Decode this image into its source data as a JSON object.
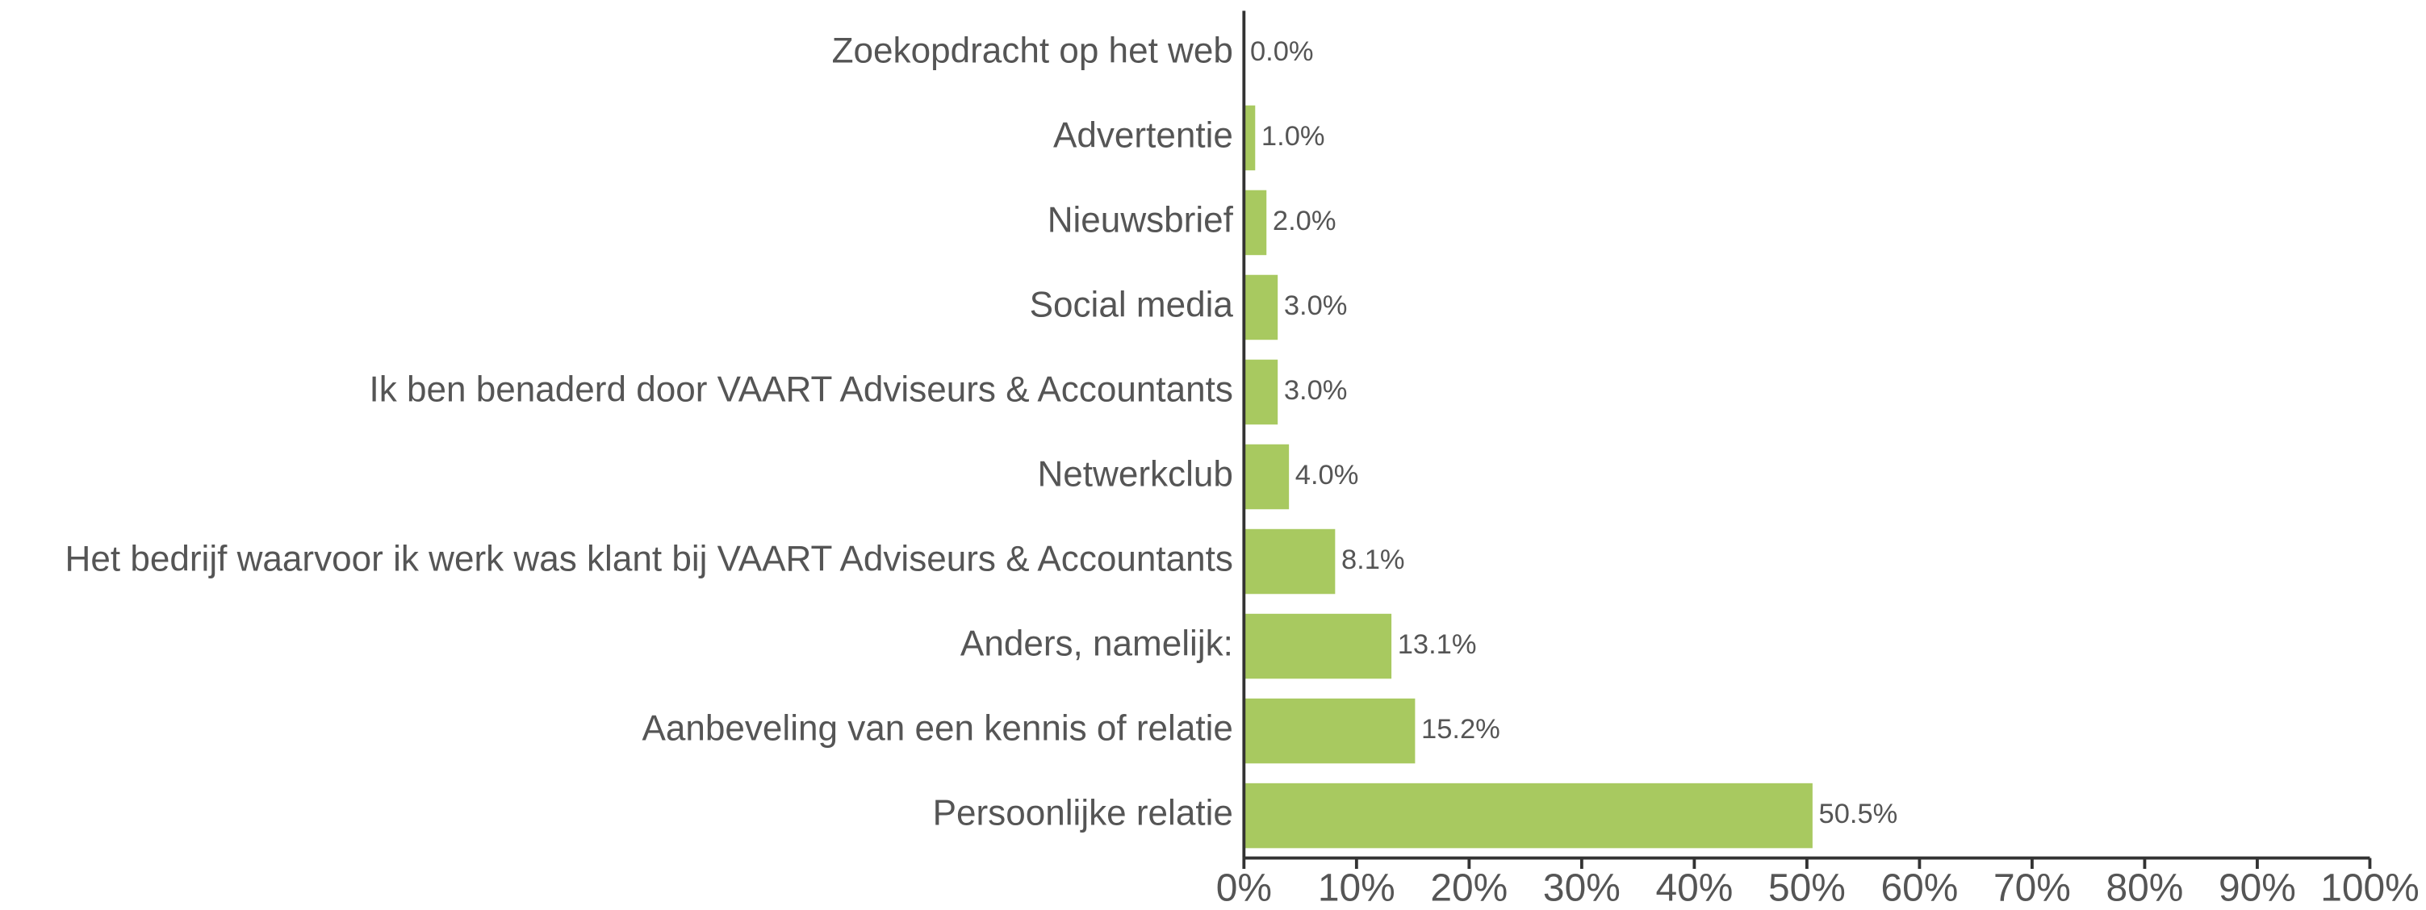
{
  "chart_data": {
    "type": "bar",
    "orientation": "horizontal",
    "categories": [
      "Zoekopdracht op het web",
      "Advertentie",
      "Nieuwsbrief",
      "Social media",
      "Ik ben benaderd door VAART Adviseurs & Accountants",
      "Netwerkclub",
      "Het bedrijf waarvoor ik werk was klant bij VAART Adviseurs & Accountants",
      "Anders, namelijk:",
      "Aanbeveling van een kennis of relatie",
      "Persoonlijke relatie"
    ],
    "values": [
      0,
      1.0,
      2.0,
      3.0,
      3.0,
      4.0,
      8.1,
      13.1,
      15.2,
      50.5
    ],
    "value_labels": [
      "0.0%",
      "1.0%",
      "2.0%",
      "3.0%",
      "3.0%",
      "4.0%",
      "8.1%",
      "13.1%",
      "15.2%",
      "50.5%"
    ],
    "color": "#a8c960",
    "xlim": [
      0,
      100
    ],
    "xticks": [
      {
        "value": 0,
        "label": "0%"
      },
      {
        "value": 10,
        "label": "10%"
      },
      {
        "value": 20,
        "label": "20%"
      },
      {
        "value": 30,
        "label": "30%"
      },
      {
        "value": 40,
        "label": "40%"
      },
      {
        "value": 50,
        "label": "50%"
      },
      {
        "value": 60,
        "label": "60%"
      },
      {
        "value": 70,
        "label": "70%"
      },
      {
        "value": 80,
        "label": "80%"
      },
      {
        "value": 90,
        "label": "90%"
      },
      {
        "value": 100,
        "label": "100%"
      }
    ],
    "grid": false
  }
}
